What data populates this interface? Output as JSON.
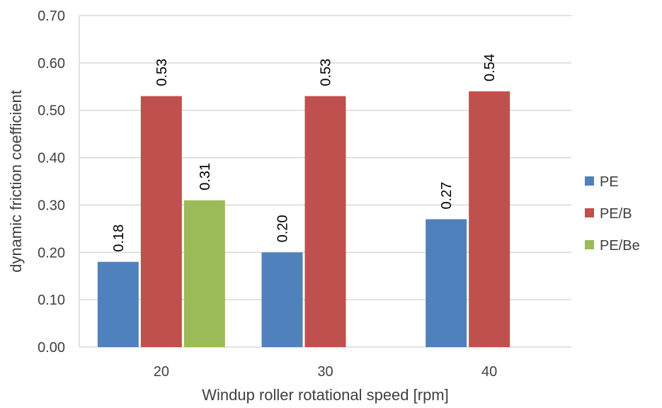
{
  "chart_data": {
    "type": "bar",
    "categories": [
      "20",
      "30",
      "40"
    ],
    "series": [
      {
        "name": "PE",
        "color": "#4F81BD",
        "values": [
          0.18,
          0.2,
          0.27
        ]
      },
      {
        "name": "PE/B",
        "color": "#C0504D",
        "values": [
          0.53,
          0.53,
          0.54
        ]
      },
      {
        "name": "PE/Be",
        "color": "#9BBB59",
        "values": [
          0.31,
          null,
          null
        ]
      }
    ],
    "data_labels": [
      [
        "0.18",
        "0.20",
        "0.27"
      ],
      [
        "0.53",
        "0.53",
        "0.54"
      ],
      [
        "0.31",
        null,
        null
      ]
    ],
    "xlabel": "Windup roller rotational speed [rpm]",
    "ylabel": "dynamic friction coefficient",
    "ylim": [
      0,
      0.7
    ],
    "yticks": [
      "0.00",
      "0.10",
      "0.20",
      "0.30",
      "0.40",
      "0.50",
      "0.60",
      "0.70"
    ],
    "grid": true,
    "legend_position": "right"
  }
}
